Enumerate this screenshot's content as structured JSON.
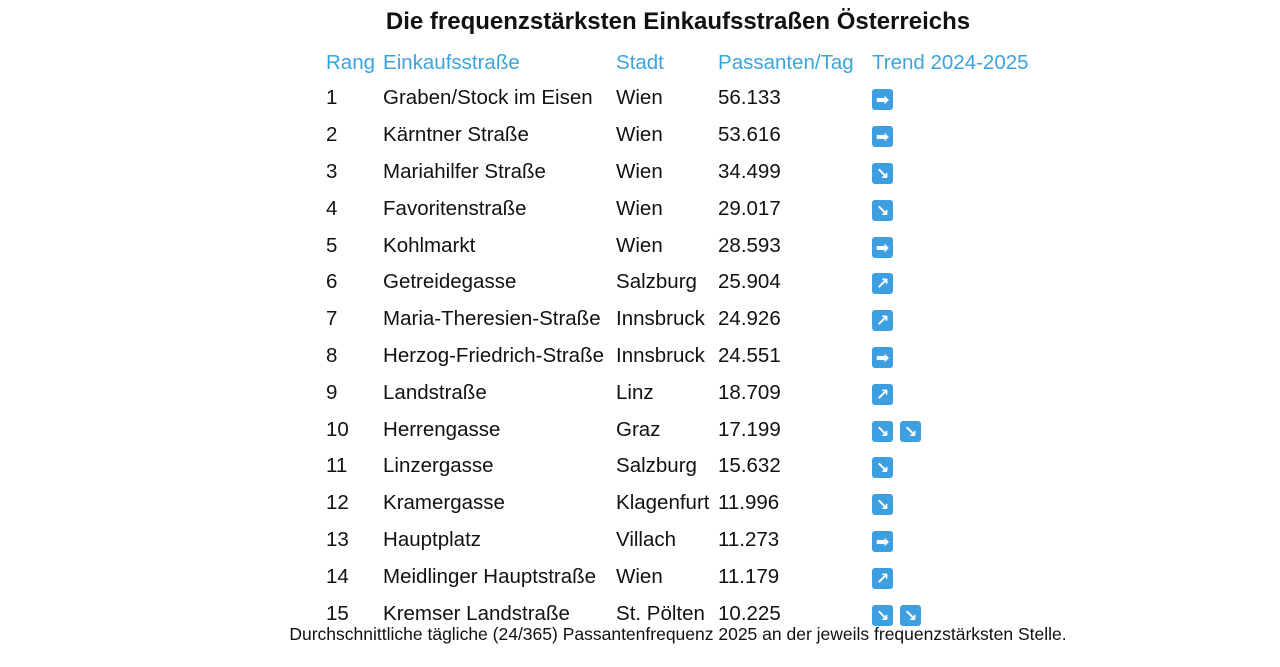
{
  "title": "Die frequenzstärksten Einkaufsstraßen Österreichs",
  "headers": {
    "rank": "Rang",
    "street": "Einkaufsstraße",
    "city": "Stadt",
    "passersby": "Passanten/Tag",
    "trend": "Trend 2024-2025"
  },
  "header_color": "#3aa3e0",
  "icon_color": "#3d9fe0",
  "icons": {
    "right": {
      "name": "arrow-right-icon",
      "glyph": "➡"
    },
    "up": {
      "name": "arrow-up-right-icon",
      "glyph": "↗"
    },
    "down": {
      "name": "arrow-down-right-icon",
      "glyph": "↘"
    }
  },
  "rows": [
    {
      "rank": "1",
      "street": "Graben/Stock im Eisen",
      "city": "Wien",
      "passersby": "56.133",
      "trend": [
        "right"
      ]
    },
    {
      "rank": "2",
      "street": "Kärntner Straße",
      "city": "Wien",
      "passersby": "53.616",
      "trend": [
        "right"
      ]
    },
    {
      "rank": "3",
      "street": "Mariahilfer Straße",
      "city": "Wien",
      "passersby": "34.499",
      "trend": [
        "down"
      ]
    },
    {
      "rank": "4",
      "street": "Favoritenstraße",
      "city": "Wien",
      "passersby": "29.017",
      "trend": [
        "down"
      ]
    },
    {
      "rank": "5",
      "street": "Kohlmarkt",
      "city": "Wien",
      "passersby": "28.593",
      "trend": [
        "right"
      ]
    },
    {
      "rank": "6",
      "street": "Getreidegasse",
      "city": "Salzburg",
      "passersby": "25.904",
      "trend": [
        "up"
      ]
    },
    {
      "rank": "7",
      "street": "Maria-Theresien-Straße",
      "city": "Innsbruck",
      "passersby": "24.926",
      "trend": [
        "up"
      ]
    },
    {
      "rank": "8",
      "street": "Herzog-Friedrich-Straße",
      "city": "Innsbruck",
      "passersby": "24.551",
      "trend": [
        "right"
      ]
    },
    {
      "rank": "9",
      "street": "Landstraße",
      "city": "Linz",
      "passersby": "18.709",
      "trend": [
        "up"
      ]
    },
    {
      "rank": "10",
      "street": "Herrengasse",
      "city": "Graz",
      "passersby": "17.199",
      "trend": [
        "down",
        "down"
      ]
    },
    {
      "rank": "11",
      "street": "Linzergasse",
      "city": "Salzburg",
      "passersby": "15.632",
      "trend": [
        "down"
      ]
    },
    {
      "rank": "12",
      "street": "Kramergasse",
      "city": "Klagenfurt",
      "passersby": "11.996",
      "trend": [
        "down"
      ]
    },
    {
      "rank": "13",
      "street": "Hauptplatz",
      "city": "Villach",
      "passersby": "11.273",
      "trend": [
        "right"
      ]
    },
    {
      "rank": "14",
      "street": "Meidlinger Hauptstraße",
      "city": "Wien",
      "passersby": "11.179",
      "trend": [
        "up"
      ]
    },
    {
      "rank": "15",
      "street": "Kremser Landstraße",
      "city": "St. Pölten",
      "passersby": "10.225",
      "trend": [
        "down",
        "down"
      ]
    }
  ],
  "footnote": "Durchschnittliche tägliche (24/365) Passantenfrequenz 2025 an der jeweils frequenzstärksten Stelle."
}
